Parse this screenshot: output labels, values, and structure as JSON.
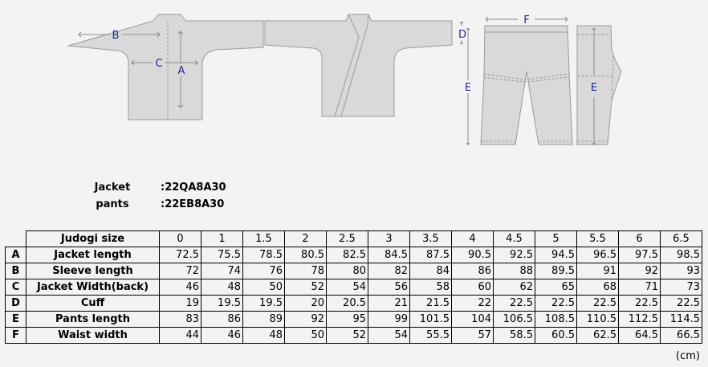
{
  "diagram": {
    "labels": {
      "A": "A",
      "B": "B",
      "C": "C",
      "D": "D",
      "E": "E",
      "F": "F"
    },
    "garment_fill": "#d9d9d9",
    "outline_color": "#9a9a9a",
    "label_color": "#1c2d8f"
  },
  "codes": [
    {
      "name": "Jacket",
      "value": ":22QA8A30"
    },
    {
      "name": "pants",
      "value": ":22EB8A30"
    }
  ],
  "table": {
    "header_label": "Judogi size",
    "sizes": [
      "0",
      "1",
      "1.5",
      "2",
      "2.5",
      "3",
      "3.5",
      "4",
      "4.5",
      "5",
      "5.5",
      "6",
      "6.5"
    ],
    "rows": [
      {
        "letter": "A",
        "name": "Jacket length",
        "values": [
          "72.5",
          "75.5",
          "78.5",
          "80.5",
          "82.5",
          "84.5",
          "87.5",
          "90.5",
          "92.5",
          "94.5",
          "96.5",
          "97.5",
          "98.5"
        ]
      },
      {
        "letter": "B",
        "name": "Sleeve length",
        "values": [
          "72",
          "74",
          "76",
          "78",
          "80",
          "82",
          "84",
          "86",
          "88",
          "89.5",
          "91",
          "92",
          "93"
        ]
      },
      {
        "letter": "C",
        "name": "Jacket Width(back)",
        "values": [
          "46",
          "48",
          "50",
          "52",
          "54",
          "56",
          "58",
          "60",
          "62",
          "65",
          "68",
          "71",
          "73"
        ]
      },
      {
        "letter": "D",
        "name": "Cuff",
        "values": [
          "19",
          "19.5",
          "19.5",
          "20",
          "20.5",
          "21",
          "21.5",
          "22",
          "22.5",
          "22.5",
          "22.5",
          "22.5",
          "22.5"
        ]
      },
      {
        "letter": "E",
        "name": "Pants length",
        "values": [
          "83",
          "86",
          "89",
          "92",
          "95",
          "99",
          "101.5",
          "104",
          "106.5",
          "108.5",
          "110.5",
          "112.5",
          "114.5"
        ]
      },
      {
        "letter": "F",
        "name": "Waist width",
        "values": [
          "44",
          "46",
          "48",
          "50",
          "52",
          "54",
          "55.5",
          "57",
          "58.5",
          "60.5",
          "62.5",
          "64.5",
          "66.5"
        ]
      }
    ],
    "unit": "(cm)"
  }
}
